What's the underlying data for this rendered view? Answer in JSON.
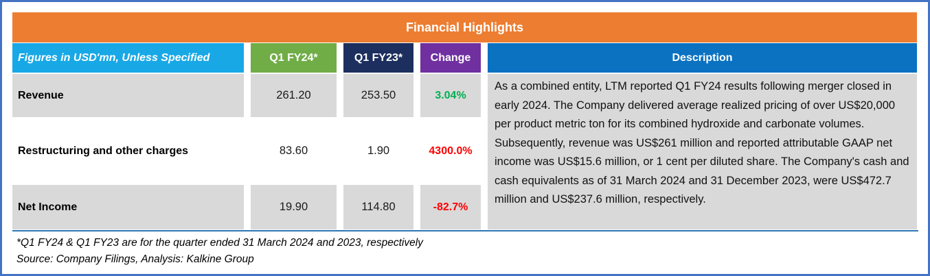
{
  "title": "Financial Highlights",
  "table": {
    "header": {
      "label": "Figures in USD'mn, Unless Specified",
      "q1fy24": "Q1 FY24*",
      "q1fy23": "Q1 FY23*",
      "change": "Change",
      "description": "Description"
    },
    "rows": [
      {
        "label": "Revenue",
        "q1fy24": "261.20",
        "q1fy23": "253.50",
        "change": "3.04%",
        "direction": "up"
      },
      {
        "label": "Restructuring and other charges",
        "q1fy24": "83.60",
        "q1fy23": "1.90",
        "change": "4300.0%",
        "direction": "down"
      },
      {
        "label": "Net Income",
        "q1fy24": "19.90",
        "q1fy23": "114.80",
        "change": "-82.7%",
        "direction": "down"
      }
    ],
    "description": "As a combined entity, LTM reported Q1 FY24 results following merger closed in early 2024. The Company delivered average realized pricing of over US$20,000 per product metric ton for its combined hydroxide and carbonate volumes. Subsequently, revenue was US$261 million and reported attributable GAAP net income was US$15.6 million, or 1 cent per diluted share. The Company's cash and cash equivalents as of 31 March 2024 and 31 December 2023, were US$472.7 million and US$237.6 million, respectively."
  },
  "footnotes": {
    "asterisk": "*Q1 FY24 & Q1 FY23 are for the quarter ended 31 March 2024 and 2023, respectively",
    "source": "Source: Company Filings, Analysis: Kalkine Group"
  },
  "colors": {
    "frame_border": "#4472C4",
    "title_bg": "#ED7D31",
    "label_header_bg": "#18A8E6",
    "fy24_header_bg": "#70AD47",
    "fy23_header_bg": "#1C2F5E",
    "change_header_bg": "#7030A0",
    "description_header_bg": "#0B72C1",
    "row_alt_bg": "#D9D9D9",
    "positive_change": "#00B050",
    "negative_change": "#FF0000",
    "table_underline": "#2E75B6"
  }
}
